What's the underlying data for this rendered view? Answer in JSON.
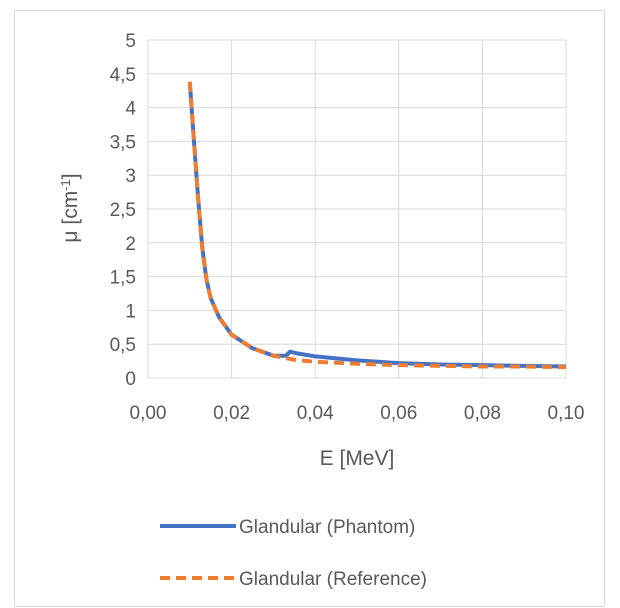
{
  "chart_data": {
    "type": "line",
    "title": "",
    "xlabel": "E [MeV]",
    "ylabel": "μ [cm-1]",
    "ylabel_parts": {
      "base": "μ [cm",
      "sup": "-1",
      "end": "]"
    },
    "xlim": [
      0,
      0.1
    ],
    "ylim": [
      0,
      5
    ],
    "x_ticks": [
      0,
      0.02,
      0.04,
      0.06,
      0.08,
      0.1
    ],
    "x_tick_labels": [
      "0,00",
      "0,02",
      "0,04",
      "0,06",
      "0,08",
      "0,10"
    ],
    "y_ticks": [
      0,
      0.5,
      1,
      1.5,
      2,
      2.5,
      3,
      3.5,
      4,
      4.5,
      5
    ],
    "y_tick_labels": [
      "0",
      "0,5",
      "1",
      "1,5",
      "2",
      "2,5",
      "3",
      "3,5",
      "4",
      "4,5",
      "5"
    ],
    "grid": true,
    "legend_position": "bottom",
    "series": [
      {
        "name": "Glandular (Phantom)",
        "color": "#4472c4",
        "dash": "solid",
        "x": [
          0.01,
          0.011,
          0.012,
          0.013,
          0.014,
          0.015,
          0.017,
          0.02,
          0.025,
          0.03,
          0.033,
          0.034,
          0.036,
          0.04,
          0.05,
          0.06,
          0.07,
          0.08,
          0.09,
          0.1
        ],
        "y": [
          4.38,
          3.5,
          2.65,
          1.92,
          1.45,
          1.18,
          0.9,
          0.64,
          0.44,
          0.33,
          0.33,
          0.39,
          0.36,
          0.32,
          0.26,
          0.22,
          0.2,
          0.19,
          0.18,
          0.17
        ]
      },
      {
        "name": "Glandular (Reference)",
        "color": "#ed7d31",
        "dash": "dashed",
        "x": [
          0.01,
          0.011,
          0.012,
          0.013,
          0.014,
          0.015,
          0.017,
          0.02,
          0.025,
          0.03,
          0.035,
          0.04,
          0.05,
          0.06,
          0.07,
          0.08,
          0.09,
          0.1
        ],
        "y": [
          4.38,
          3.5,
          2.65,
          1.92,
          1.45,
          1.18,
          0.9,
          0.64,
          0.44,
          0.33,
          0.27,
          0.24,
          0.21,
          0.19,
          0.18,
          0.17,
          0.17,
          0.16
        ]
      }
    ]
  }
}
